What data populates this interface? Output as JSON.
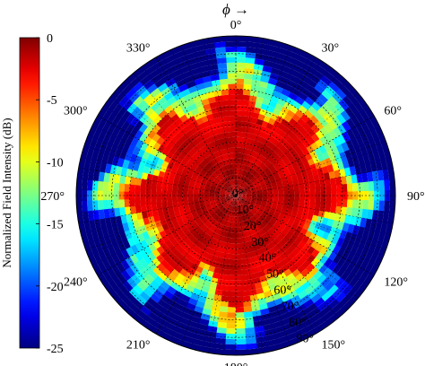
{
  "chart_data": {
    "type": "heatmap",
    "title": "",
    "polar": true,
    "phi_label": "ϕ →",
    "colorbar": {
      "label": "Normalized Field Intensity (dB)",
      "range": [
        -25,
        0
      ],
      "ticks": [
        "0",
        "-5",
        "-10",
        "-15",
        "-20",
        "-25"
      ],
      "colormap": "jet"
    },
    "angular_axis": {
      "name": "phi",
      "unit": "degrees",
      "direction": "clockwise",
      "zero_at": "top",
      "ticks": [
        0,
        30,
        60,
        90,
        120,
        150,
        180,
        210,
        240,
        270,
        300,
        330
      ],
      "tick_labels": [
        "0°",
        "30°",
        "60°",
        "90°",
        "120°",
        "150°",
        "180°",
        "210°",
        "240°",
        "270°",
        "300°",
        "330°"
      ]
    },
    "radial_axis": {
      "name": "theta",
      "unit": "degrees",
      "range": [
        0,
        90
      ],
      "ticks": [
        0,
        10,
        20,
        30,
        40,
        50,
        60,
        70,
        80,
        90
      ],
      "tick_labels": [
        "0°",
        "10°",
        "20°",
        "30°",
        "40°",
        "50°",
        "60°",
        "70°",
        "80°",
        "90°"
      ]
    },
    "grid": true,
    "description_of_field": {
      "main_beam_dB": 0,
      "main_beam_extent_theta_deg": [
        0,
        55
      ],
      "edge_level_dB_range": [
        -25,
        -10
      ],
      "lobe_count": 8
    },
    "lobe_phi_deg": [
      0,
      45,
      90,
      135,
      180,
      225,
      270,
      315
    ],
    "gap_phi_deg": [
      22,
      67,
      112,
      157,
      202,
      247,
      292,
      337
    ],
    "lobe_reach_theta_deg": [
      60,
      58,
      62,
      56,
      63,
      57,
      61,
      59
    ],
    "gap_reach_theta_deg": [
      42,
      44,
      40,
      45,
      41,
      43,
      39,
      44
    ]
  }
}
